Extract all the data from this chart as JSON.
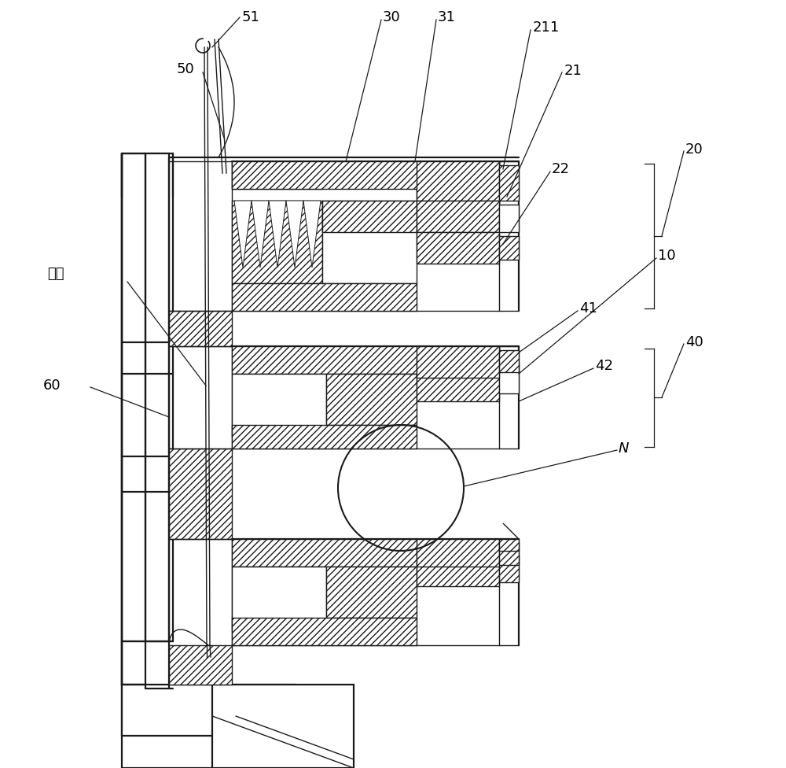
{
  "bg_color": "#ffffff",
  "line_color": "#1a1a1a",
  "fig_width": 10.0,
  "fig_height": 9.76
}
